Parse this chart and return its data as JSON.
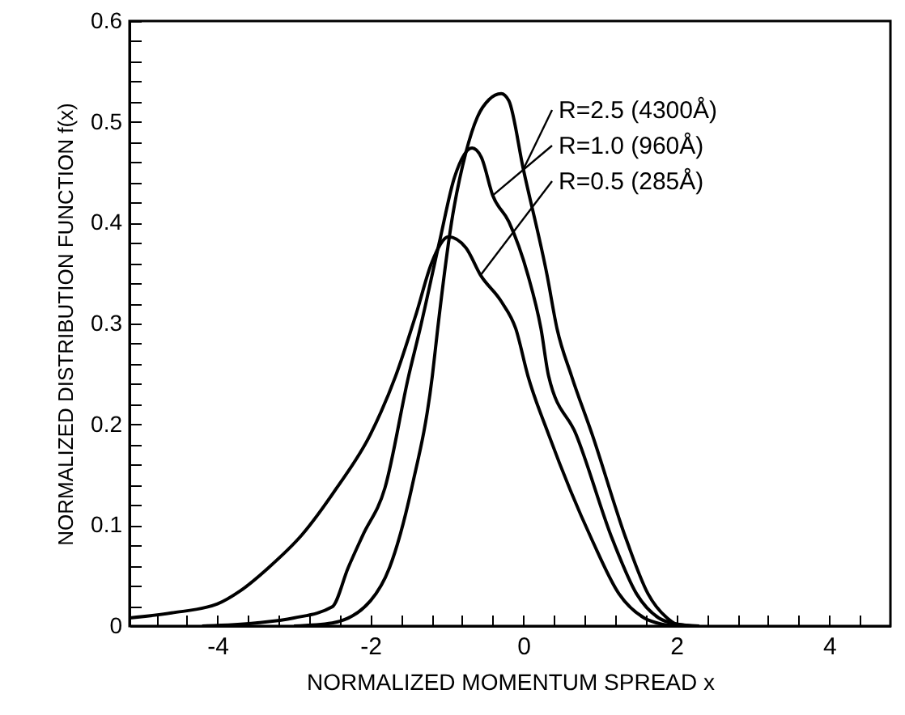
{
  "chart_data": {
    "type": "line",
    "xlabel": "NORMALIZED MOMENTUM SPREAD x",
    "ylabel": "NORMALIZED DISTRIBUTION FUNCTION f(x)",
    "xlim": [
      -5.15,
      4.8
    ],
    "ylim": [
      0,
      0.6
    ],
    "xticks": [
      {
        "value": -4.8,
        "label": null
      },
      {
        "value": -4.4,
        "label": null
      },
      -4,
      {
        "value": -3.6,
        "label": null
      },
      {
        "value": -3.2,
        "label": null
      },
      {
        "value": -2.8,
        "label": null
      },
      {
        "value": -2.4,
        "label": null
      },
      -2,
      {
        "value": -1.6,
        "label": null
      },
      {
        "value": -1.2,
        "label": null
      },
      {
        "value": -0.8,
        "label": null
      },
      {
        "value": -0.4,
        "label": null
      },
      0,
      {
        "value": 0.4,
        "label": null
      },
      {
        "value": 0.8,
        "label": null
      },
      {
        "value": 1.2,
        "label": null
      },
      {
        "value": 1.6,
        "label": null
      },
      2,
      {
        "value": 2.4,
        "label": null
      },
      {
        "value": 2.8,
        "label": null
      },
      {
        "value": 3.2,
        "label": null
      },
      {
        "value": 3.6,
        "label": null
      },
      4,
      {
        "value": 4.4,
        "label": null
      }
    ],
    "yticks": [
      0,
      {
        "value": 0.02,
        "label": null
      },
      {
        "value": 0.04,
        "label": null
      },
      {
        "value": 0.06,
        "label": null
      },
      {
        "value": 0.08,
        "label": null
      },
      0.1,
      {
        "value": 0.12,
        "label": null
      },
      {
        "value": 0.14,
        "label": null
      },
      {
        "value": 0.16,
        "label": null
      },
      {
        "value": 0.18,
        "label": null
      },
      0.2,
      {
        "value": 0.22,
        "label": null
      },
      {
        "value": 0.24,
        "label": null
      },
      {
        "value": 0.26,
        "label": null
      },
      {
        "value": 0.28,
        "label": null
      },
      0.3,
      {
        "value": 0.32,
        "label": null
      },
      {
        "value": 0.34,
        "label": null
      },
      {
        "value": 0.36,
        "label": null
      },
      {
        "value": 0.38,
        "label": null
      },
      0.4,
      {
        "value": 0.42,
        "label": null
      },
      {
        "value": 0.44,
        "label": null
      },
      {
        "value": 0.46,
        "label": null
      },
      {
        "value": 0.48,
        "label": null
      },
      0.5,
      {
        "value": 0.52,
        "label": null
      },
      {
        "value": 0.54,
        "label": null
      },
      {
        "value": 0.56,
        "label": null
      },
      {
        "value": 0.58,
        "label": null
      },
      0.6
    ],
    "series": [
      {
        "name": "R=2.5 (4300Å)",
        "color": "#000000",
        "x": [
          -3,
          -2.5,
          -2,
          -1.75,
          -1.46,
          -1.19,
          -1.12,
          -0.94,
          -0.75,
          -0.6,
          -0.45,
          -0.29,
          -0.19,
          0.0,
          0.31,
          0.44,
          0.63,
          0.9,
          1.35,
          1.63,
          1.88,
          2.0,
          2.3
        ],
        "values": [
          0,
          0.003,
          0.025,
          0.058,
          0.137,
          0.248,
          0.295,
          0.4,
          0.47,
          0.505,
          0.522,
          0.528,
          0.521,
          0.453,
          0.348,
          0.295,
          0.248,
          0.19,
          0.085,
          0.032,
          0.008,
          0.002,
          0
        ]
      },
      {
        "name": "R=1.0 (960Å)",
        "color": "#000000",
        "x": [
          -4.2,
          -3.5,
          -3,
          -2.5,
          -2.29,
          -2.1,
          -1.81,
          -1.5,
          -1.35,
          -1.1,
          -0.9,
          -0.67,
          -0.55,
          -0.4,
          -0.19,
          0.06,
          0.23,
          0.33,
          0.69,
          1.17,
          1.48,
          1.77,
          2.0,
          2.2
        ],
        "values": [
          0,
          0.003,
          0.008,
          0.019,
          0.058,
          0.09,
          0.137,
          0.248,
          0.295,
          0.38,
          0.445,
          0.474,
          0.465,
          0.427,
          0.401,
          0.348,
          0.295,
          0.248,
          0.19,
          0.085,
          0.032,
          0.008,
          0.002,
          0
        ]
      },
      {
        "name": "R=0.5 (285Å)",
        "color": "#000000",
        "x": [
          -5.15,
          -4.6,
          -4,
          -3.7,
          -3.33,
          -2.9,
          -2.44,
          -2.0,
          -1.67,
          -1.4,
          -1.2,
          -0.98,
          -0.75,
          -0.56,
          -0.29,
          -0.1,
          0.06,
          0.33,
          0.9,
          1.25,
          1.58,
          1.8,
          2.0
        ],
        "values": [
          0.008,
          0.013,
          0.022,
          0.035,
          0.058,
          0.09,
          0.137,
          0.19,
          0.248,
          0.31,
          0.36,
          0.386,
          0.375,
          0.348,
          0.322,
          0.295,
          0.248,
          0.19,
          0.085,
          0.032,
          0.008,
          0.002,
          0
        ]
      }
    ]
  }
}
